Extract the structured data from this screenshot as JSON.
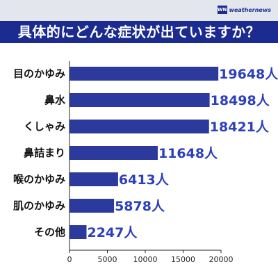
{
  "header": {
    "logo_mark": "WN",
    "logo_text": "weathernews",
    "title": "具体的にどんな症状が出ていますか？"
  },
  "colors": {
    "bar": "#2b3a9c",
    "title_band": "#1b2b8f",
    "value_label": "#2d3fbd"
  },
  "chart_data": {
    "type": "bar",
    "orientation": "horizontal",
    "title": "具体的にどんな症状が出ていますか？",
    "categories": [
      "目のかゆみ",
      "鼻水",
      "くしゃみ",
      "鼻詰まり",
      "喉のかゆみ",
      "肌のかゆみ",
      "その他"
    ],
    "values": [
      19648,
      18498,
      18421,
      11648,
      6413,
      5878,
      2247
    ],
    "value_labels": [
      "19648人",
      "18498人",
      "18421人",
      "11648人",
      "6413人",
      "5878人",
      "2247人"
    ],
    "xlim": [
      0,
      20000
    ],
    "xticks": [
      "0",
      "5000",
      "10000",
      "15000",
      "20000"
    ],
    "tick_values": [
      0,
      5000,
      10000,
      15000,
      20000
    ],
    "grid": false,
    "legend": "none"
  }
}
